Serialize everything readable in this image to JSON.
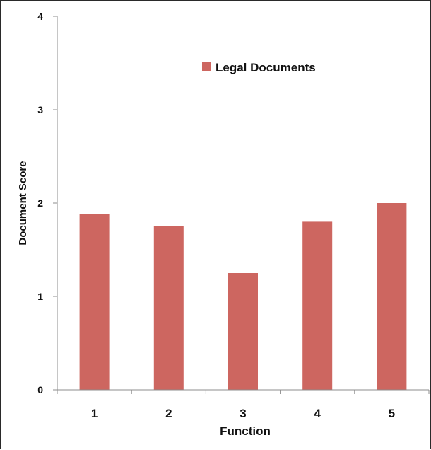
{
  "chart_data": {
    "type": "bar",
    "categories": [
      "1",
      "2",
      "3",
      "4",
      "5"
    ],
    "series": [
      {
        "name": "Legal Documents",
        "values": [
          1.88,
          1.75,
          1.25,
          1.8,
          2.0
        ],
        "color": "#cd6660"
      }
    ],
    "title": "",
    "xlabel": "Function",
    "ylabel": "Document Score",
    "ylim": [
      0,
      4
    ],
    "yticks": [
      "0",
      "1",
      "2",
      "3",
      "4"
    ],
    "grid": false,
    "legend_position": "top-right"
  }
}
